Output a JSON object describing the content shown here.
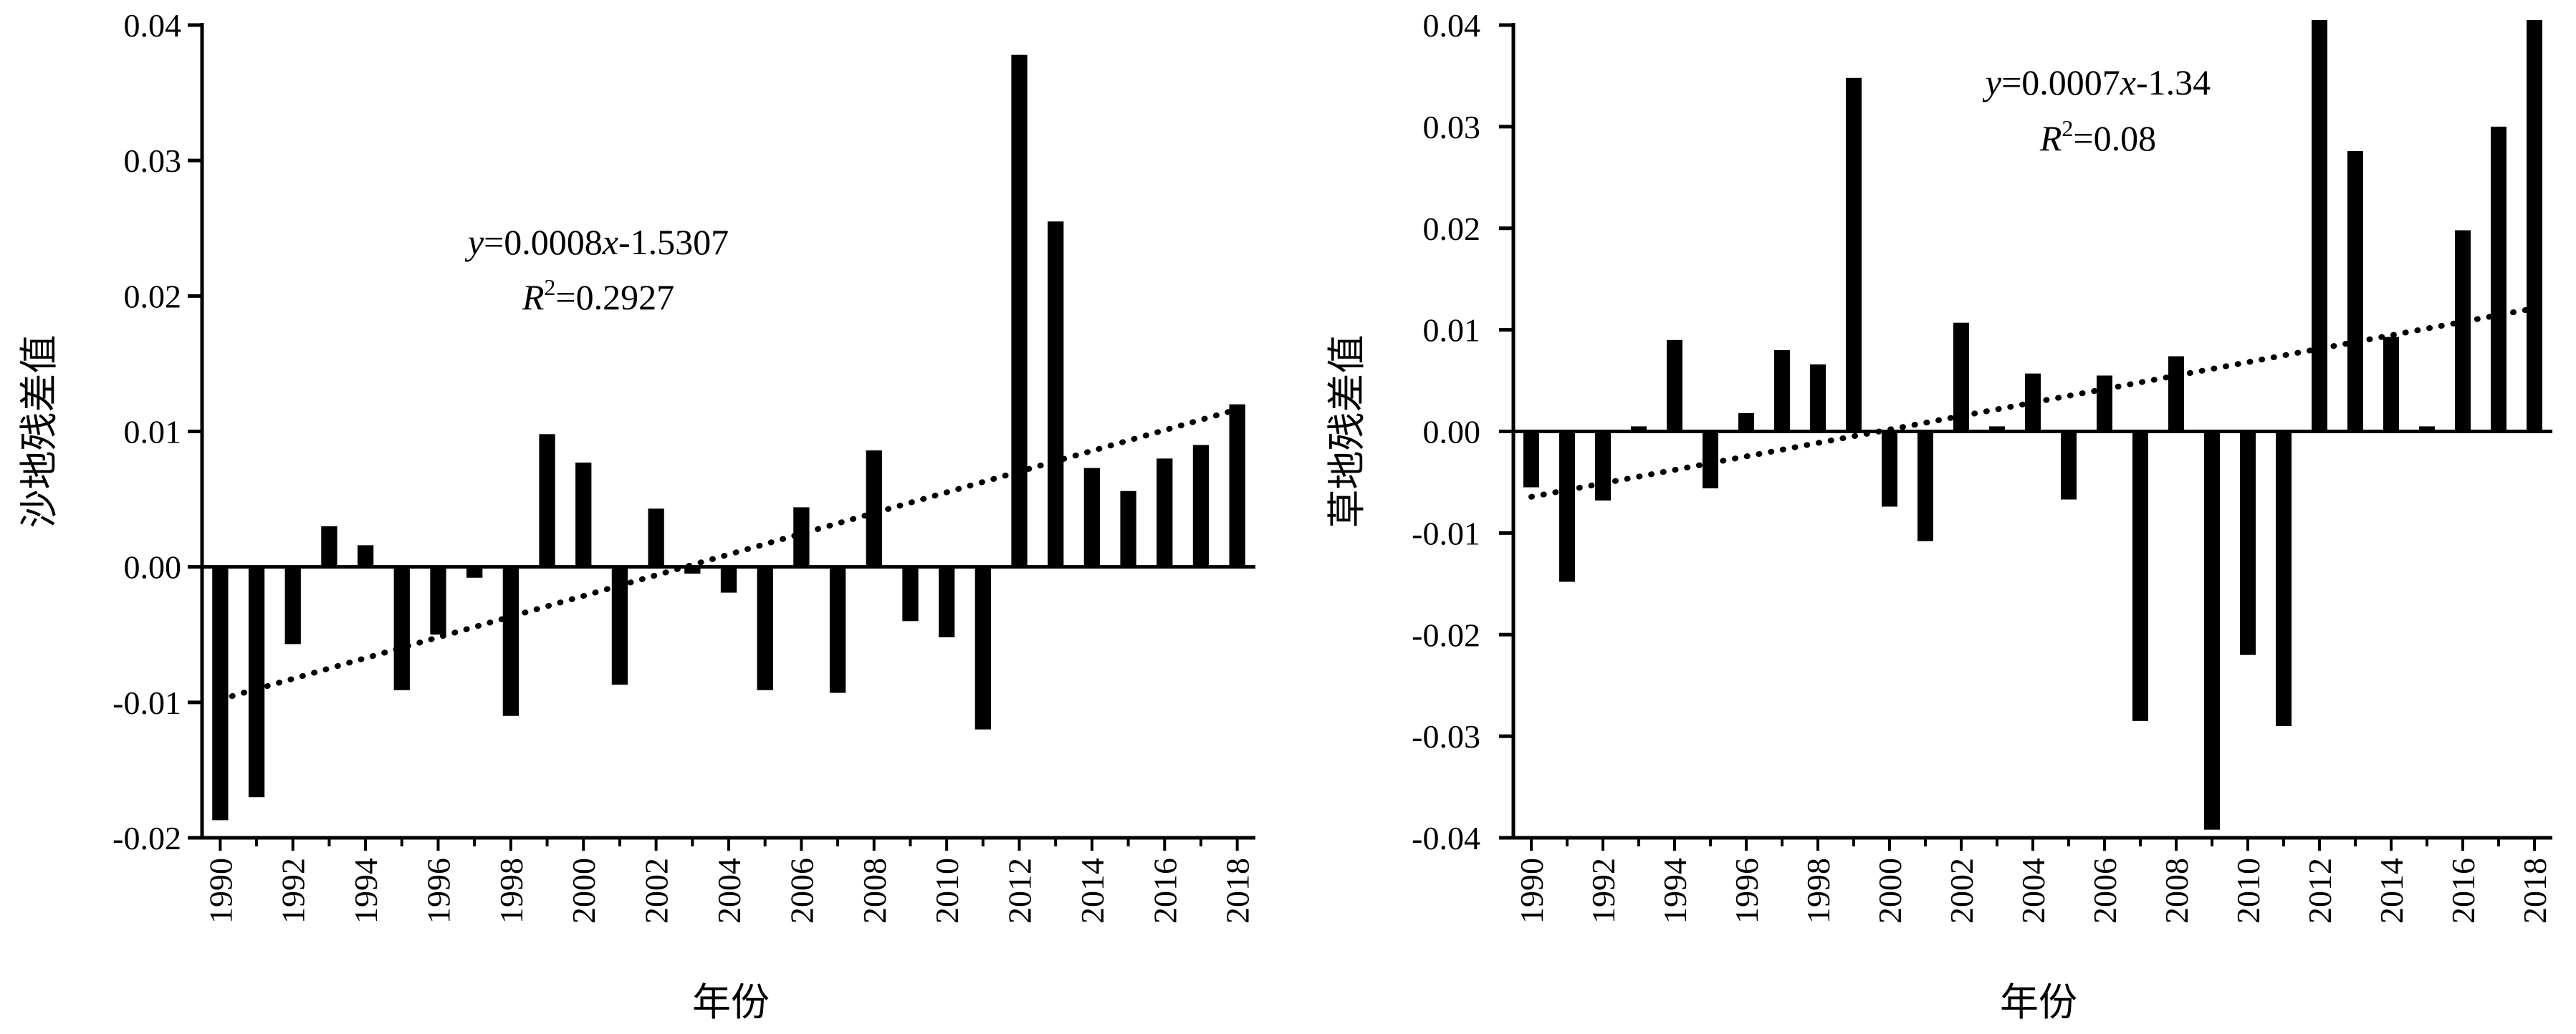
{
  "chart_data": [
    {
      "type": "bar",
      "ylabel": "沙地残差值",
      "xlabel": "年份",
      "ylim": [
        -0.02,
        0.04
      ],
      "yticks": [
        "-0.02",
        "-0.01",
        "0.00",
        "0.01",
        "0.02",
        "0.03",
        "0.04"
      ],
      "xtick_labels": [
        "1990",
        "1992",
        "1994",
        "1996",
        "1998",
        "2000",
        "2002",
        "2004",
        "2006",
        "2008",
        "2010",
        "2012",
        "2014",
        "2016",
        "2018"
      ],
      "categories": [
        1990,
        1991,
        1992,
        1993,
        1994,
        1995,
        1996,
        1997,
        1998,
        1999,
        2000,
        2001,
        2002,
        2003,
        2004,
        2005,
        2006,
        2007,
        2008,
        2009,
        2010,
        2011,
        2012,
        2013,
        2014,
        2015,
        2016,
        2017,
        2018
      ],
      "values": [
        -0.0187,
        -0.017,
        -0.0057,
        0.003,
        0.0016,
        -0.0091,
        -0.005,
        -0.0008,
        -0.011,
        0.0098,
        0.0077,
        -0.0087,
        0.0043,
        -0.0005,
        -0.0019,
        -0.0091,
        0.0044,
        -0.0093,
        0.0086,
        -0.004,
        -0.0052,
        -0.012,
        0.0378,
        0.0255,
        0.0073,
        0.0056,
        0.008,
        0.009,
        0.012
      ],
      "trendline": {
        "slope": 0.0008,
        "intercept": -1.5307,
        "style": "dotted"
      },
      "equation": {
        "y": "y",
        "x": "x",
        "text_mid": "=0.0008",
        "text_end": "-1.5307"
      },
      "r2": {
        "R": "R",
        "sup": "2",
        "text": "=0.2927"
      },
      "grid": false,
      "legend": "none"
    },
    {
      "type": "bar",
      "ylabel": "草地残差值",
      "xlabel": "年份",
      "ylim": [
        -0.04,
        0.04
      ],
      "yticks": [
        "-0.04",
        "-0.03",
        "-0.02",
        "-0.01",
        "0.00",
        "0.01",
        "0.02",
        "0.03",
        "0.04"
      ],
      "xtick_labels": [
        "1990",
        "1992",
        "1994",
        "1996",
        "1998",
        "2000",
        "2002",
        "2004",
        "2006",
        "2008",
        "2010",
        "2012",
        "2014",
        "2016",
        "2018"
      ],
      "categories": [
        1990,
        1991,
        1992,
        1993,
        1994,
        1995,
        1996,
        1997,
        1998,
        1999,
        2000,
        2001,
        2002,
        2003,
        2004,
        2005,
        2006,
        2007,
        2008,
        2009,
        2010,
        2011,
        2012,
        2013,
        2014,
        2015,
        2016,
        2017,
        2018
      ],
      "values": [
        -0.0055,
        -0.0148,
        -0.0068,
        0.0005,
        0.009,
        -0.0056,
        0.0018,
        0.008,
        0.0066,
        0.0348,
        -0.0074,
        -0.0108,
        0.0107,
        0.0005,
        0.0057,
        -0.0067,
        0.0055,
        -0.0285,
        0.0074,
        -0.0392,
        -0.022,
        -0.029,
        0.0405,
        0.0276,
        0.0093,
        0.0005,
        0.0198,
        0.03,
        0.0405
      ],
      "trendline": {
        "slope": 0.0007,
        "intercept": -1.34,
        "style": "dotted"
      },
      "equation": {
        "y": "y",
        "x": "x",
        "text_mid": "=0.0007",
        "text_end": "-1.34"
      },
      "r2": {
        "R": "R",
        "sup": "2",
        "text": "=0.08"
      },
      "grid": false,
      "legend": "none"
    }
  ]
}
